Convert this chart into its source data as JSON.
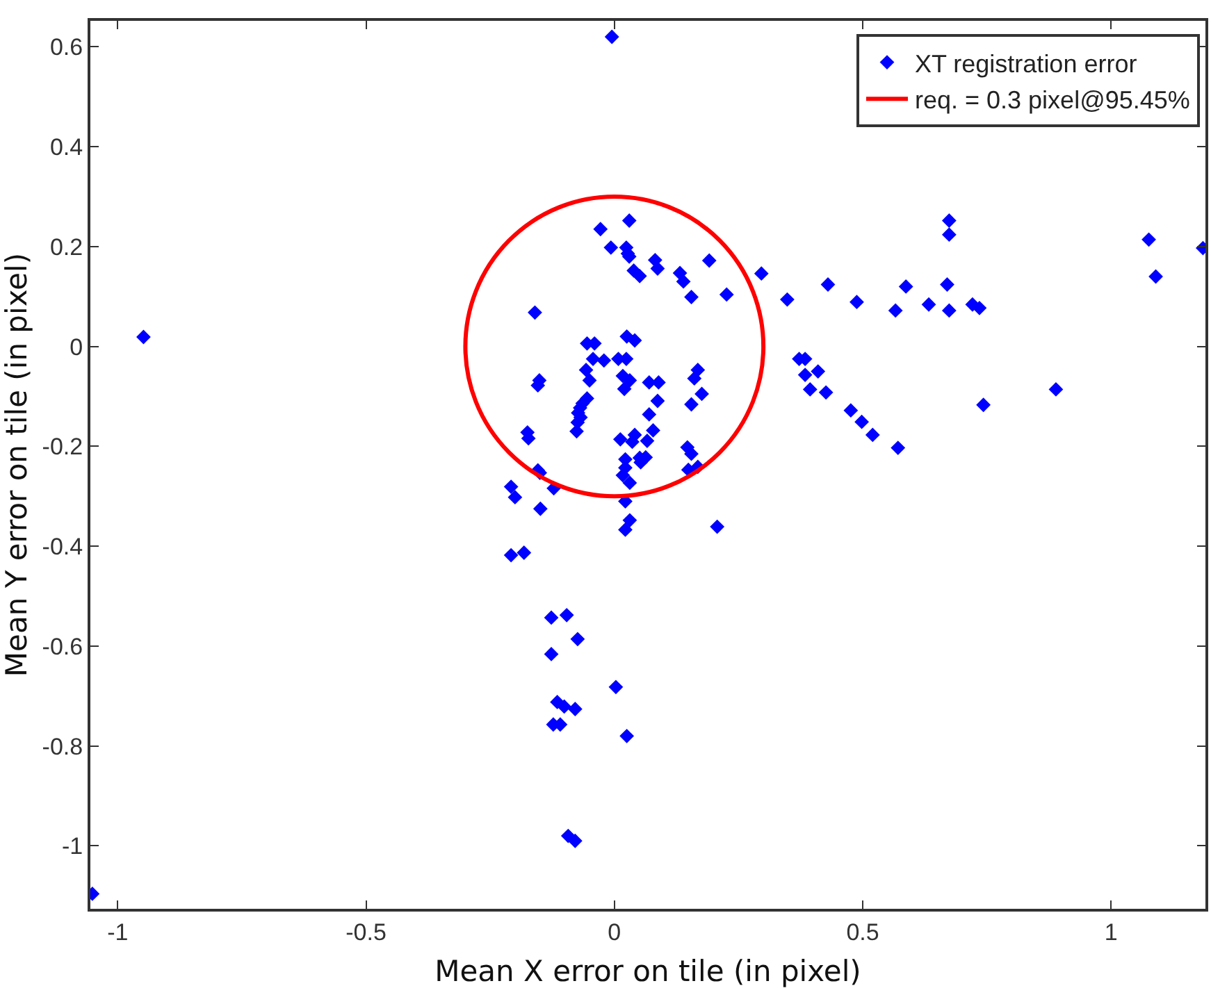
{
  "chart_data": {
    "type": "scatter",
    "xlabel": "Mean X error on tile (in pixel)",
    "ylabel": "Mean Y error on tile (in pixel)",
    "xlim": [
      -1.055,
      1.19
    ],
    "ylim": [
      -1.126,
      0.652
    ],
    "xticks": [
      -1,
      -0.5,
      0,
      0.5,
      1
    ],
    "yticks": [
      -1,
      -0.8,
      -0.6,
      -0.4,
      -0.2,
      0,
      0.2,
      0.4,
      0.6
    ],
    "grid": false,
    "legend": "top right",
    "marker": "diamond",
    "annotations": [
      "req. = 0.3 pixel@95.45%"
    ],
    "series": [
      {
        "name": "XT registration error",
        "color": "#0000ff",
        "x": [
          -0.005,
          0.03,
          -0.028,
          -0.007,
          0.024,
          0.027,
          0.03,
          0.082,
          0.087,
          0.039,
          0.051,
          0.132,
          0.139,
          0.155,
          0.191,
          0.226,
          0.296,
          0.348,
          0.43,
          0.488,
          0.566,
          0.587,
          0.633,
          0.674,
          0.674,
          0.67,
          0.674,
          0.721,
          0.735,
          1.076,
          1.09,
          1.185,
          0.372,
          0.384,
          0.384,
          0.41,
          0.394,
          0.426,
          0.476,
          0.498,
          0.52,
          0.571,
          0.889,
          0.743,
          -0.055,
          -0.04,
          0.025,
          0.041,
          -0.043,
          -0.021,
          0.008,
          0.024,
          -0.057,
          -0.05,
          0.017,
          0.031,
          0.02,
          0.07,
          0.089,
          0.168,
          0.161,
          0.087,
          0.07,
          -0.055,
          -0.069,
          -0.064,
          -0.074,
          0.176,
          0.155,
          0.012,
          0.036,
          0.041,
          0.078,
          0.066,
          0.147,
          0.155,
          0.022,
          0.051,
          0.063,
          0.168,
          -0.948,
          -0.16,
          -0.151,
          -0.154,
          -0.175,
          -0.173,
          -0.076,
          -0.073,
          -0.068,
          -0.154,
          -0.15,
          -0.122,
          -0.208,
          -0.2,
          -0.149,
          -0.208,
          -0.182,
          -0.127,
          -0.096,
          -0.074,
          -0.127,
          -0.115,
          -0.101,
          -0.079,
          -0.123,
          -0.109,
          -0.093,
          -0.079,
          -1.051,
          0.022,
          0.017,
          0.031,
          0.022,
          0.031,
          0.022,
          0.053,
          0.149,
          0.207,
          0.003,
          0.025
        ],
        "values": [
          0.62,
          0.252,
          0.235,
          0.198,
          0.198,
          0.186,
          0.18,
          0.173,
          0.156,
          0.152,
          0.141,
          0.147,
          0.13,
          0.099,
          0.172,
          0.104,
          0.146,
          0.094,
          0.124,
          0.089,
          0.072,
          0.12,
          0.084,
          0.252,
          0.224,
          0.124,
          0.072,
          0.084,
          0.077,
          0.214,
          0.14,
          0.197,
          -0.025,
          -0.025,
          -0.057,
          -0.05,
          -0.086,
          -0.092,
          -0.128,
          -0.151,
          -0.177,
          -0.203,
          -0.086,
          -0.117,
          0.006,
          0.006,
          0.02,
          0.012,
          -0.025,
          -0.028,
          -0.025,
          -0.025,
          -0.047,
          -0.068,
          -0.059,
          -0.068,
          -0.085,
          -0.072,
          -0.072,
          -0.047,
          -0.064,
          -0.109,
          -0.136,
          -0.104,
          -0.123,
          -0.114,
          -0.152,
          -0.095,
          -0.116,
          -0.186,
          -0.191,
          -0.177,
          -0.168,
          -0.189,
          -0.202,
          -0.215,
          -0.226,
          -0.223,
          -0.222,
          -0.241,
          0.019,
          0.068,
          -0.068,
          -0.078,
          -0.172,
          -0.184,
          -0.17,
          -0.133,
          -0.142,
          -0.248,
          -0.253,
          -0.284,
          -0.281,
          -0.302,
          -0.325,
          -0.418,
          -0.413,
          -0.543,
          -0.538,
          -0.586,
          -0.616,
          -0.712,
          -0.721,
          -0.726,
          -0.757,
          -0.757,
          -0.98,
          -0.99,
          -1.096,
          -0.243,
          -0.258,
          -0.273,
          -0.31,
          -0.348,
          -0.367,
          -0.232,
          -0.247,
          -0.361,
          -0.682,
          -0.78
        ]
      }
    ]
  }
}
